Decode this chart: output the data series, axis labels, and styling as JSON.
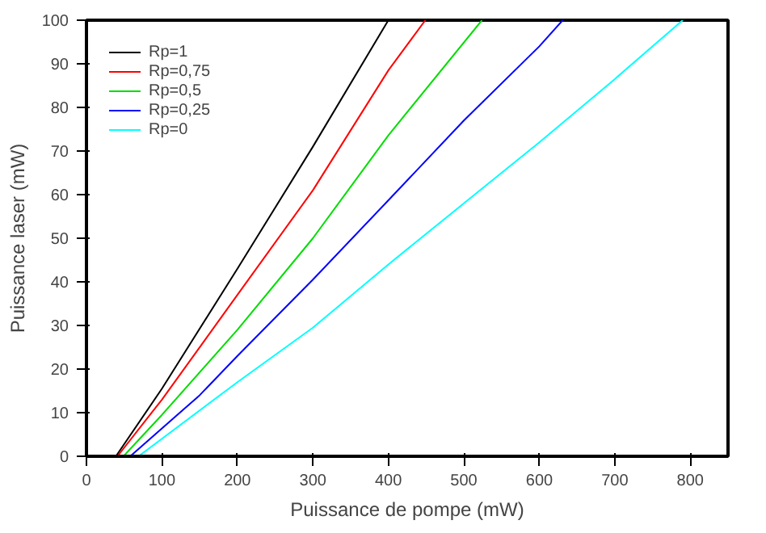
{
  "chart_data": {
    "type": "line",
    "xlabel": "Puissance de pompe (mW)",
    "ylabel": "Puissance laser (mW)",
    "xlim": [
      0,
      850
    ],
    "ylim": [
      0,
      100
    ],
    "xticks": [
      0,
      100,
      200,
      300,
      400,
      500,
      600,
      700,
      800
    ],
    "yticks": [
      0,
      10,
      20,
      30,
      40,
      50,
      60,
      70,
      80,
      90,
      100
    ],
    "grid": false,
    "legend": "top left",
    "marker": "none",
    "line_style": "solid",
    "series": [
      {
        "name": "Rp=1",
        "color": "#000000",
        "x": [
          39,
          100,
          200,
          300,
          400
        ],
        "values": [
          0,
          15.5,
          43,
          71,
          100
        ]
      },
      {
        "name": "Rp=0,75",
        "color": "#ff0000",
        "x": [
          41,
          100,
          200,
          300,
          400,
          449
        ],
        "values": [
          0,
          13,
          37,
          61,
          88.5,
          100
        ]
      },
      {
        "name": "Rp=0,5",
        "color": "#00dd00",
        "x": [
          49,
          100,
          200,
          300,
          400,
          524
        ],
        "values": [
          0,
          9.5,
          29,
          50,
          73.6,
          100
        ]
      },
      {
        "name": "Rp=0,25",
        "color": "#0000ff",
        "x": [
          58,
          150,
          200,
          300,
          400,
          500,
          600,
          631
        ],
        "values": [
          0,
          14,
          23,
          40.5,
          58.7,
          77,
          94,
          100
        ]
      },
      {
        "name": "Rp=0",
        "color": "#00ffff",
        "x": [
          69,
          200,
          300,
          400,
          500,
          600,
          700,
          790
        ],
        "values": [
          0,
          17,
          29.5,
          44,
          58,
          72,
          86.5,
          100
        ]
      }
    ]
  }
}
